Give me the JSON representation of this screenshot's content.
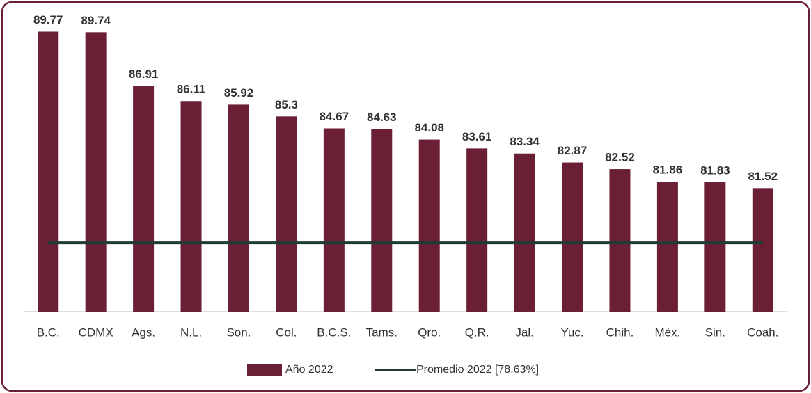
{
  "chart_data": {
    "type": "bar",
    "categories": [
      "B.C.",
      "CDMX",
      "Ags.",
      "N.L.",
      "Son.",
      "Col.",
      "B.C.S.",
      "Tams.",
      "Qro.",
      "Q.R.",
      "Jal.",
      "Yuc.",
      "Chih.",
      "Méx.",
      "Sin.",
      "Coah."
    ],
    "series": [
      {
        "name": "Año 2022",
        "color": "#6b1f35",
        "values": [
          89.77,
          89.74,
          86.91,
          86.11,
          85.92,
          85.3,
          84.67,
          84.63,
          84.08,
          83.61,
          83.34,
          82.87,
          82.52,
          81.86,
          81.83,
          81.52
        ]
      }
    ],
    "average": {
      "name": "Promedio 2022 [78.63%]",
      "color": "#1e3b34",
      "value": 78.63
    },
    "ylim": [
      75,
      91
    ]
  }
}
